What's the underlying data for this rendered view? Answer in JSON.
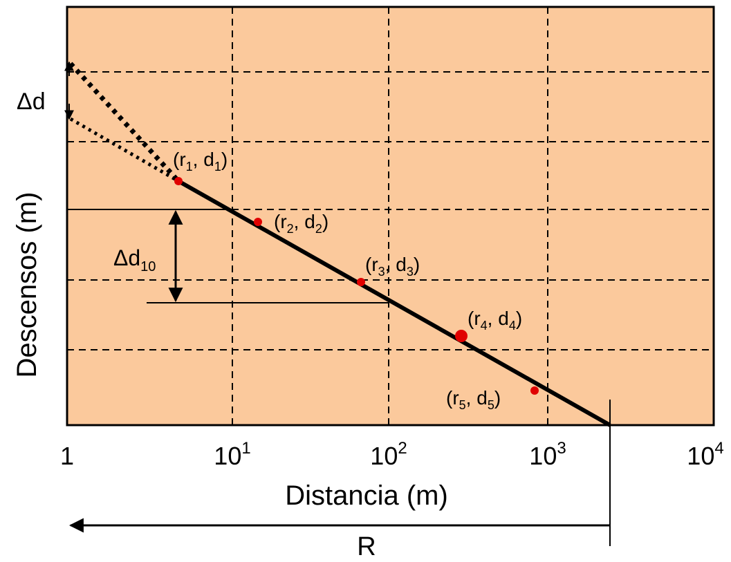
{
  "figure": {
    "x_axis_label": "Distancia (m)",
    "y_axis_label": "Descensos (m)",
    "x_ticks": [
      {
        "base": "1",
        "exp": ""
      },
      {
        "base": "10",
        "exp": "1"
      },
      {
        "base": "10",
        "exp": "2"
      },
      {
        "base": "10",
        "exp": "3"
      },
      {
        "base": "10",
        "exp": "4"
      }
    ],
    "delta_d_label": "Δd",
    "delta_d10_label": {
      "base": "Δd",
      "sub": "10"
    },
    "radius_label": "R",
    "points": [
      {
        "r": "r",
        "r_sub": "1",
        "d": "d",
        "d_sub": "1"
      },
      {
        "r": "r",
        "r_sub": "2",
        "d": "d",
        "d_sub": "2"
      },
      {
        "r": "r",
        "r_sub": "3",
        "d": "d",
        "d_sub": "3"
      },
      {
        "r": "r",
        "r_sub": "4",
        "d": "d",
        "d_sub": "4"
      },
      {
        "r": "r",
        "r_sub": "5",
        "d": "d",
        "d_sub": "5"
      }
    ],
    "colors": {
      "plot_background": "#FBC99C",
      "line": "#000000",
      "point": "#E00000",
      "frame": "#000000"
    }
  }
}
